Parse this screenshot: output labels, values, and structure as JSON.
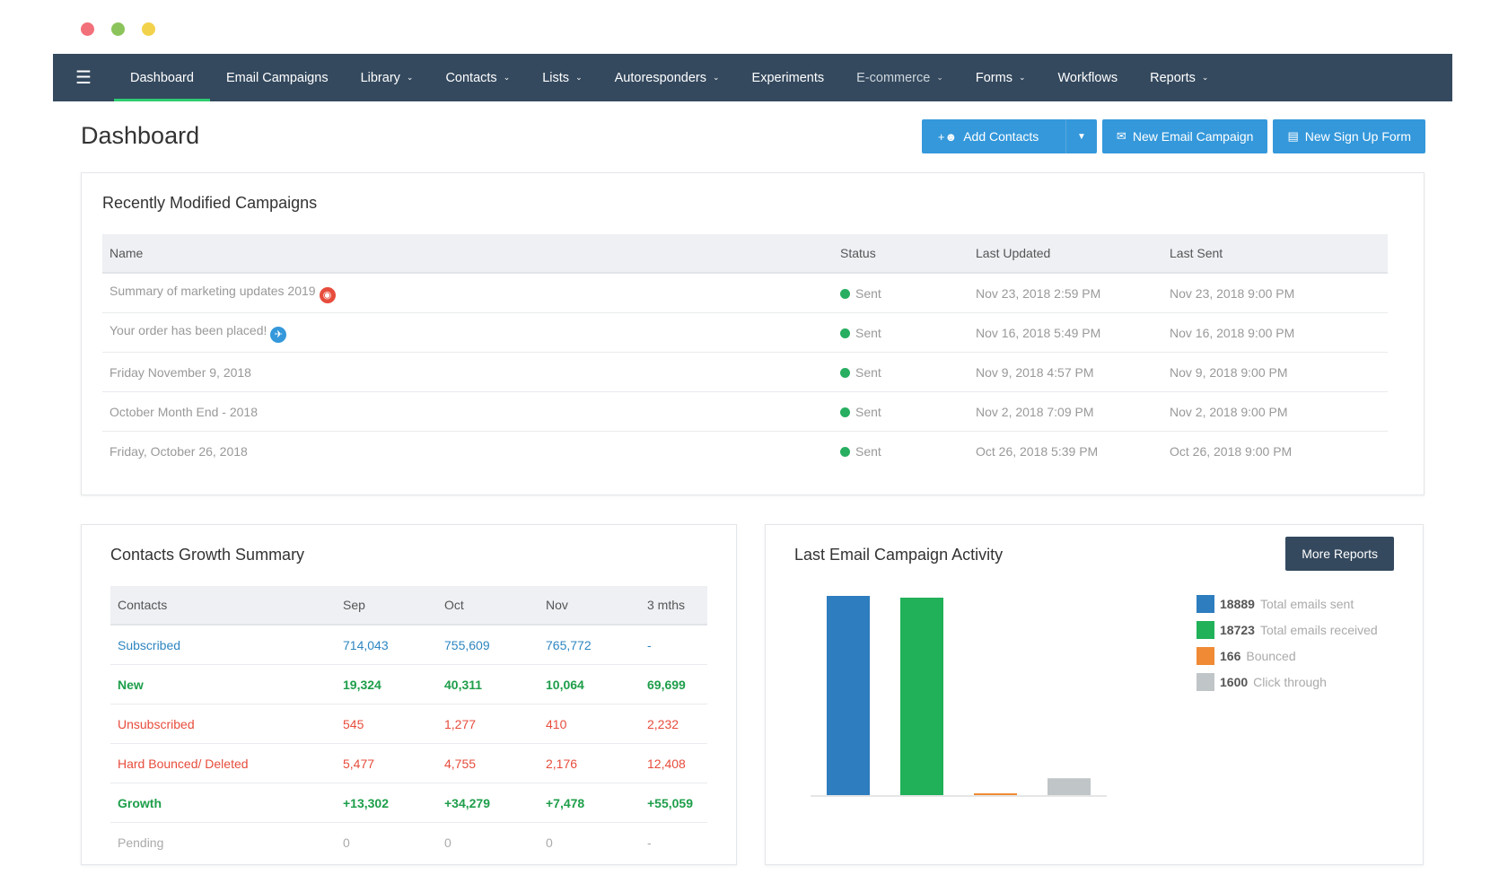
{
  "nav": {
    "items": [
      {
        "label": "Dashboard",
        "caret": false,
        "active": true
      },
      {
        "label": "Email Campaigns",
        "caret": false
      },
      {
        "label": "Library",
        "caret": true
      },
      {
        "label": "Contacts",
        "caret": true
      },
      {
        "label": "Lists",
        "caret": true
      },
      {
        "label": "Autoresponders",
        "caret": true
      },
      {
        "label": "Experiments",
        "caret": false
      },
      {
        "label": "E-commerce",
        "caret": true,
        "dim": true
      },
      {
        "label": "Forms",
        "caret": true
      },
      {
        "label": "Workflows",
        "caret": false
      },
      {
        "label": "Reports",
        "caret": true
      }
    ]
  },
  "page": {
    "title": "Dashboard"
  },
  "actions": {
    "add_contacts": "Add Contacts",
    "new_email_campaign": "New Email Campaign",
    "new_signup_form": "New Sign Up Form"
  },
  "campaigns": {
    "title": "Recently Modified Campaigns",
    "columns": [
      "Name",
      "Status",
      "Last Updated",
      "Last Sent"
    ],
    "rows": [
      {
        "name": "Summary of marketing updates 2019",
        "emoji": "red",
        "status": "Sent",
        "updated": "Nov 23, 2018 2:59 PM",
        "sent": "Nov 23, 2018 9:00 PM"
      },
      {
        "name": "Your order has been placed!",
        "emoji": "blue",
        "status": "Sent",
        "updated": "Nov 16, 2018 5:49 PM",
        "sent": "Nov 16, 2018 9:00 PM"
      },
      {
        "name": "Friday November 9, 2018",
        "status": "Sent",
        "updated": "Nov 9, 2018 4:57 PM",
        "sent": "Nov 9, 2018 9:00 PM"
      },
      {
        "name": "October Month End - 2018",
        "status": "Sent",
        "updated": "Nov 2, 2018 7:09 PM",
        "sent": "Nov 2, 2018 9:00 PM"
      },
      {
        "name": "Friday, October 26, 2018",
        "status": "Sent",
        "updated": "Oct 26, 2018 5:39 PM",
        "sent": "Oct 26, 2018 9:00 PM"
      }
    ]
  },
  "growth": {
    "title": "Contacts Growth Summary",
    "columns": [
      "Contacts",
      "Sep",
      "Oct",
      "Nov",
      "3 mths"
    ],
    "rows": [
      {
        "label": "Subscribed",
        "values": [
          "714,043",
          "755,609",
          "765,772",
          "-"
        ],
        "tone": "blue"
      },
      {
        "label": "New",
        "values": [
          "19,324",
          "40,311",
          "10,064",
          "69,699"
        ],
        "tone": "green"
      },
      {
        "label": "Unsubscribed",
        "values": [
          "545",
          "1,277",
          "410",
          "2,232"
        ],
        "tone": "red"
      },
      {
        "label": "Hard Bounced/ Deleted",
        "values": [
          "5,477",
          "4,755",
          "2,176",
          "12,408"
        ],
        "tone": "red"
      },
      {
        "label": "Growth",
        "values": [
          "+13,302",
          "+34,279",
          "+7,478",
          "+55,059"
        ],
        "tone": "green"
      },
      {
        "label": "Pending",
        "values": [
          "0",
          "0",
          "0",
          "-"
        ],
        "tone": "gray"
      }
    ]
  },
  "activity": {
    "title": "Last Email Campaign Activity",
    "more_reports": "More Reports"
  },
  "chart_data": {
    "type": "bar",
    "categories": [
      "Total emails sent",
      "Total emails received",
      "Bounced",
      "Click through"
    ],
    "values": [
      18889,
      18723,
      166,
      1600
    ],
    "colors": [
      "#2e7dbf",
      "#21b159",
      "#f08a34",
      "#c0c5c8"
    ],
    "ylim": [
      0,
      18889
    ]
  }
}
